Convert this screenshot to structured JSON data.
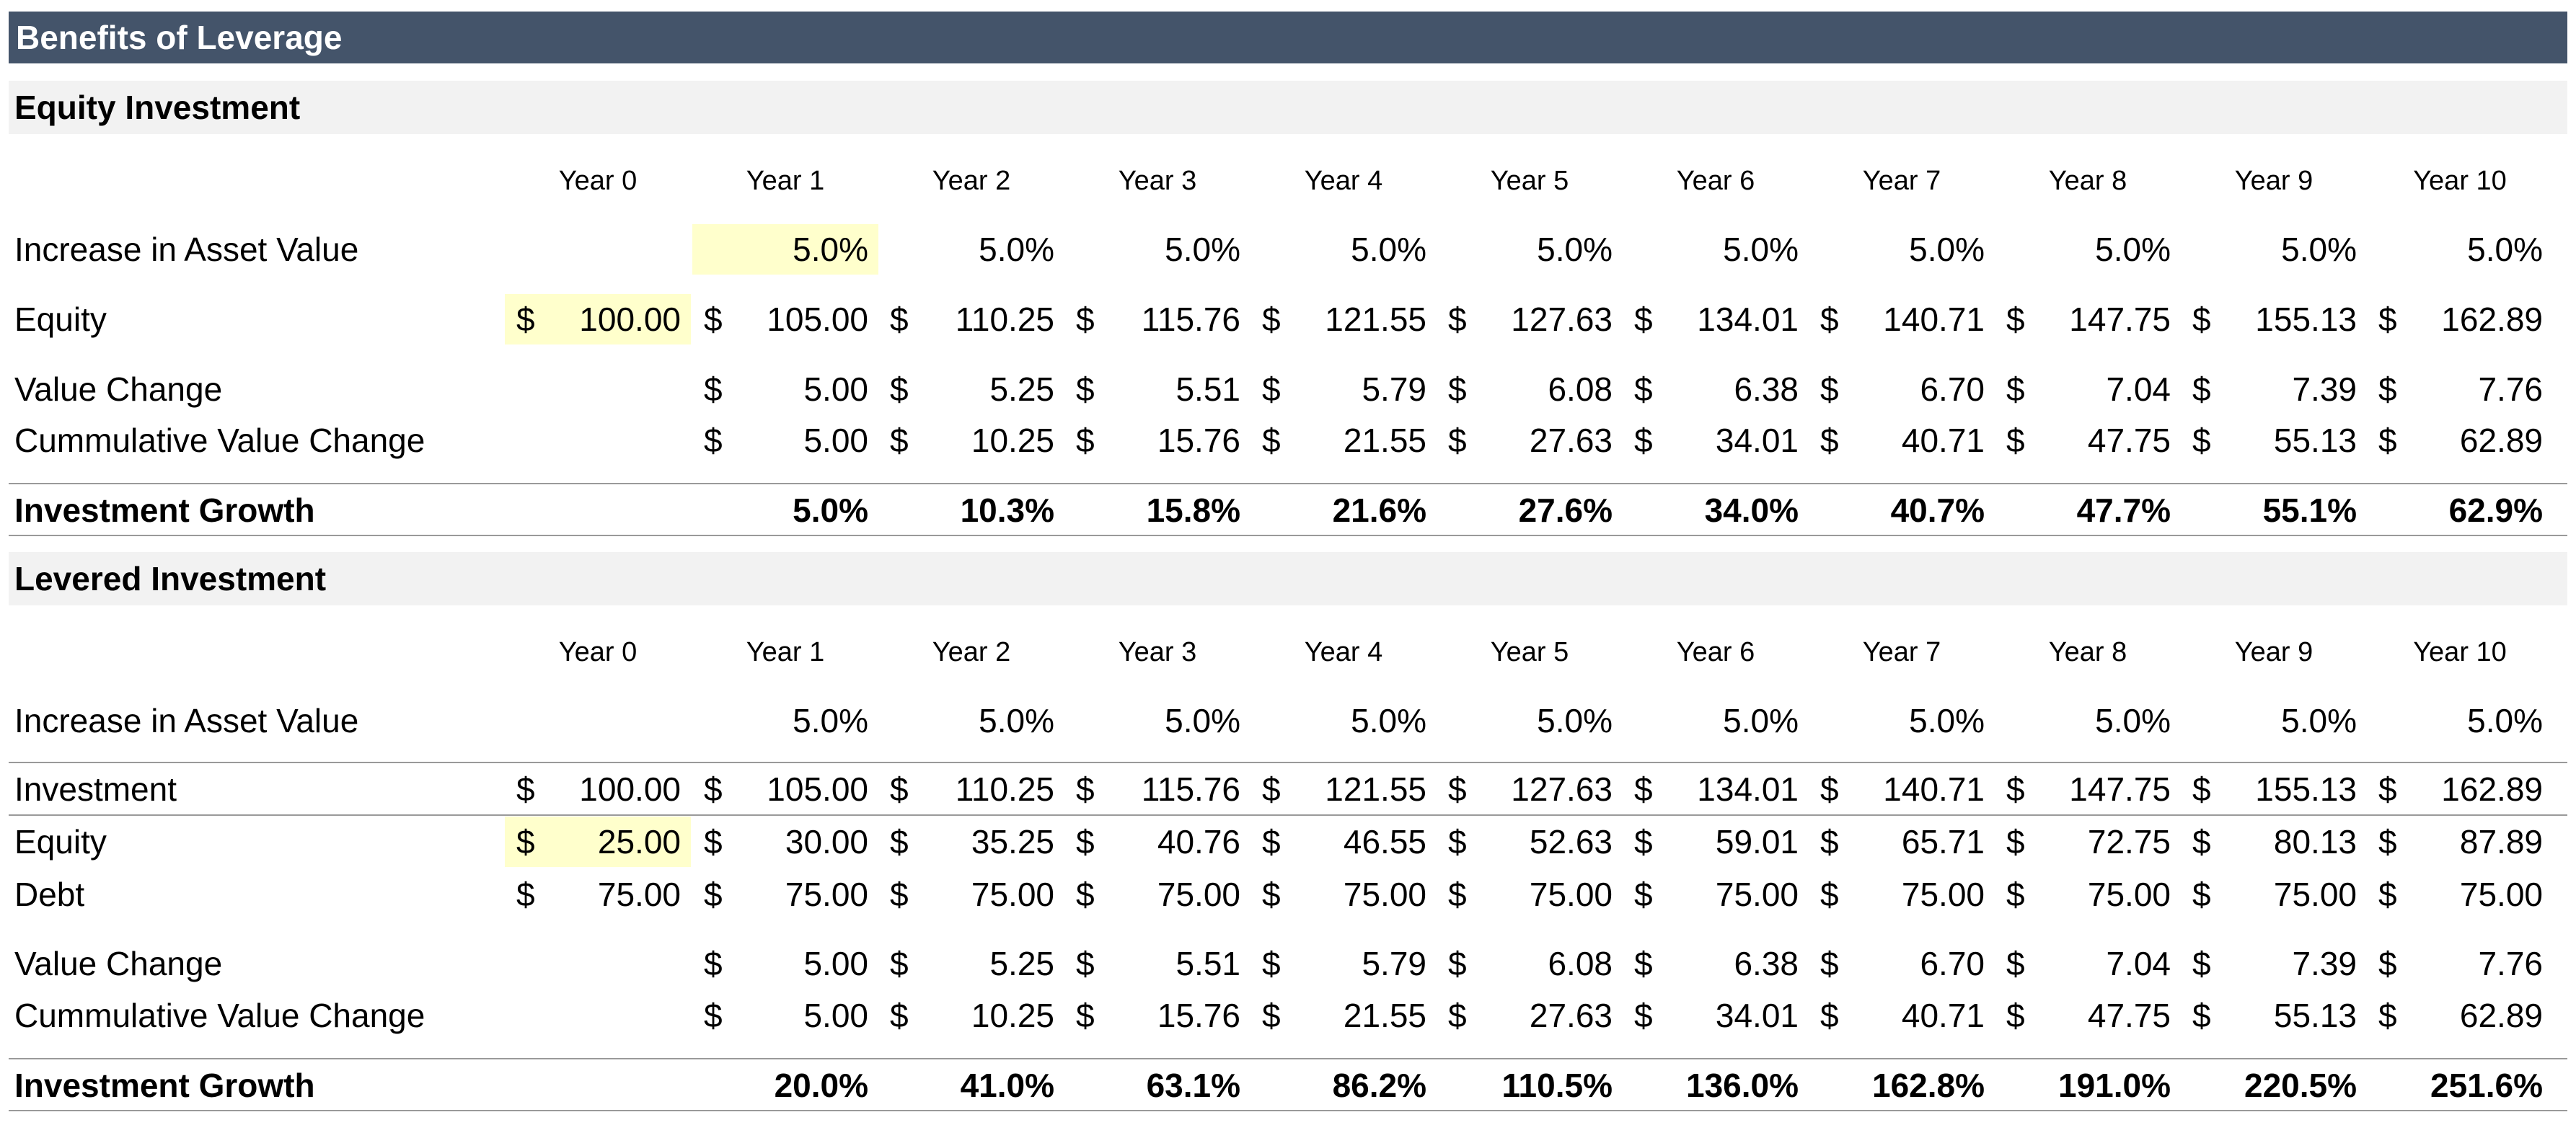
{
  "title": "Benefits of Leverage",
  "currency": "$",
  "equity_investment": {
    "heading": "Equity Investment",
    "years": [
      "Year 0",
      "Year 1",
      "Year 2",
      "Year 3",
      "Year 4",
      "Year 5",
      "Year 6",
      "Year 7",
      "Year 8",
      "Year 9",
      "Year 10"
    ],
    "rows": {
      "increase": {
        "label": "Increase in Asset Value",
        "values": [
          "",
          "5.0%",
          "5.0%",
          "5.0%",
          "5.0%",
          "5.0%",
          "5.0%",
          "5.0%",
          "5.0%",
          "5.0%",
          "5.0%"
        ]
      },
      "equity": {
        "label": "Equity",
        "values": [
          "100.00",
          "105.00",
          "110.25",
          "115.76",
          "121.55",
          "127.63",
          "134.01",
          "140.71",
          "147.75",
          "155.13",
          "162.89"
        ]
      },
      "value_change": {
        "label": "Value Change",
        "values": [
          "",
          "5.00",
          "5.25",
          "5.51",
          "5.79",
          "6.08",
          "6.38",
          "6.70",
          "7.04",
          "7.39",
          "7.76"
        ]
      },
      "cumulative": {
        "label": "Cummulative Value Change",
        "values": [
          "",
          "5.00",
          "10.25",
          "15.76",
          "21.55",
          "27.63",
          "34.01",
          "40.71",
          "47.75",
          "55.13",
          "62.89"
        ]
      },
      "growth": {
        "label": "Investment Growth",
        "values": [
          "",
          "5.0%",
          "10.3%",
          "15.8%",
          "21.6%",
          "27.6%",
          "34.0%",
          "40.7%",
          "47.7%",
          "55.1%",
          "62.9%"
        ]
      }
    }
  },
  "levered_investment": {
    "heading": "Levered Investment",
    "years": [
      "Year 0",
      "Year 1",
      "Year 2",
      "Year 3",
      "Year 4",
      "Year 5",
      "Year 6",
      "Year 7",
      "Year 8",
      "Year 9",
      "Year 10"
    ],
    "rows": {
      "increase": {
        "label": "Increase in Asset Value",
        "values": [
          "",
          "5.0%",
          "5.0%",
          "5.0%",
          "5.0%",
          "5.0%",
          "5.0%",
          "5.0%",
          "5.0%",
          "5.0%",
          "5.0%"
        ]
      },
      "investment": {
        "label": "Investment",
        "values": [
          "100.00",
          "105.00",
          "110.25",
          "115.76",
          "121.55",
          "127.63",
          "134.01",
          "140.71",
          "147.75",
          "155.13",
          "162.89"
        ]
      },
      "equity": {
        "label": "Equity",
        "values": [
          "25.00",
          "30.00",
          "35.25",
          "40.76",
          "46.55",
          "52.63",
          "59.01",
          "65.71",
          "72.75",
          "80.13",
          "87.89"
        ]
      },
      "debt": {
        "label": "Debt",
        "values": [
          "75.00",
          "75.00",
          "75.00",
          "75.00",
          "75.00",
          "75.00",
          "75.00",
          "75.00",
          "75.00",
          "75.00",
          "75.00"
        ]
      },
      "value_change": {
        "label": "Value Change",
        "values": [
          "",
          "5.00",
          "5.25",
          "5.51",
          "5.79",
          "6.08",
          "6.38",
          "6.70",
          "7.04",
          "7.39",
          "7.76"
        ]
      },
      "cumulative": {
        "label": "Cummulative Value Change",
        "values": [
          "",
          "5.00",
          "10.25",
          "15.76",
          "21.55",
          "27.63",
          "34.01",
          "40.71",
          "47.75",
          "55.13",
          "62.89"
        ]
      },
      "growth": {
        "label": "Investment Growth",
        "values": [
          "",
          "20.0%",
          "41.0%",
          "63.1%",
          "86.2%",
          "110.5%",
          "136.0%",
          "162.8%",
          "191.0%",
          "220.5%",
          "251.6%"
        ]
      }
    }
  },
  "highlight_color": "#ffffcc",
  "header_color": "#44546a"
}
